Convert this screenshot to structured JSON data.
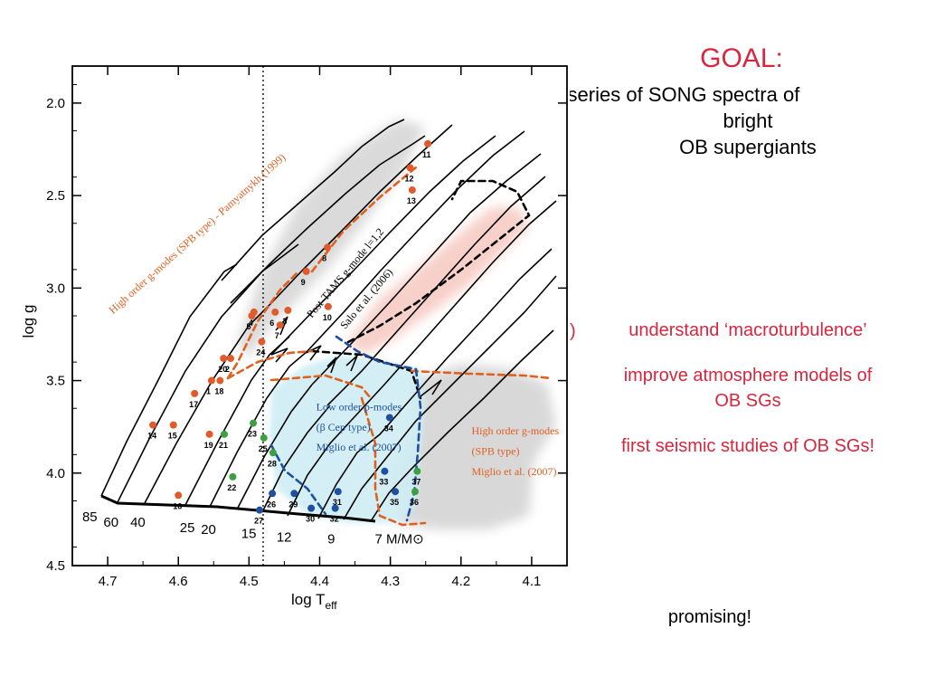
{
  "slide": {
    "goal_title": "GOAL:",
    "goal_lines": [
      "me-series of SONG spectra of",
      "bright",
      "OB supergiants"
    ],
    "bullet_marker": ")",
    "bullets": [
      "understand ‘macroturbulence’",
      "improve atmosphere models of",
      "OB SGs",
      "first seismic studies of OB SGs!"
    ],
    "footer": "promising!",
    "colors": {
      "accent": "#d7263d",
      "text": "#000000"
    }
  },
  "chart_data": {
    "type": "scatter",
    "xlabel": "log T",
    "xlabel_sub": "eff",
    "ylabel": "log g",
    "xlim": [
      4.75,
      4.05
    ],
    "ylim": [
      4.5,
      1.8
    ],
    "xticks": [
      "4.7",
      "4.6",
      "4.5",
      "4.4",
      "4.3",
      "4.2",
      "4.1"
    ],
    "xtick_values": [
      4.7,
      4.6,
      4.5,
      4.4,
      4.3,
      4.2,
      4.1
    ],
    "yticks": [
      "2.0",
      "2.5",
      "3.0",
      "3.5",
      "4.0",
      "4.5"
    ],
    "ytick_values": [
      2.0,
      2.5,
      3.0,
      3.5,
      4.0,
      4.5
    ],
    "vertical_line_x": 4.48,
    "mass_labels": [
      {
        "text": "85",
        "x": 4.736,
        "y": 4.26
      },
      {
        "text": "60",
        "x": 4.706,
        "y": 4.29
      },
      {
        "text": "40",
        "x": 4.668,
        "y": 4.29
      },
      {
        "text": "25",
        "x": 4.598,
        "y": 4.32
      },
      {
        "text": "20",
        "x": 4.568,
        "y": 4.33
      },
      {
        "text": "15",
        "x": 4.511,
        "y": 4.35
      },
      {
        "text": "12",
        "x": 4.461,
        "y": 4.37
      },
      {
        "text": "9",
        "x": 4.389,
        "y": 4.38
      },
      {
        "text": "7 M/M⊙",
        "x": 4.322,
        "y": 4.38
      }
    ],
    "region_labels": [
      {
        "text": "Low order p-modes",
        "color": "#1f4fa0",
        "x": 4.405,
        "y": 3.66
      },
      {
        "text": "(β Cep type)",
        "color": "#1f4fa0",
        "x": 4.405,
        "y": 3.77
      },
      {
        "text": "Miglio et al. (2007)",
        "color": "#1f4fa0",
        "x": 4.405,
        "y": 3.88
      },
      {
        "text": "High order g-modes",
        "color": "#e06020",
        "x": 4.185,
        "y": 3.79
      },
      {
        "text": "(SPB type)",
        "color": "#e06020",
        "x": 4.185,
        "y": 3.9
      },
      {
        "text": "Miglio et al. (2007)",
        "color": "#e06020",
        "x": 4.185,
        "y": 4.01
      }
    ],
    "rotated_labels": [
      {
        "text": "High order g-modes (SPB type) - Pamyatnykh (1999)",
        "color": "#e06020",
        "x": 4.57,
        "y": 2.72,
        "angle": -42
      },
      {
        "text": "Post-TAMS g-mode l=1,2",
        "color": "#000000",
        "x": 4.36,
        "y": 2.93,
        "angle": -50
      },
      {
        "text": "Salo et al. (2006)",
        "color": "#000000",
        "x": 4.33,
        "y": 3.07,
        "angle": -50
      }
    ],
    "series": [
      {
        "name": "",
        "color": "#e05a2b",
        "points": [
          {
            "id": "1",
            "x": 4.553,
            "y": 3.5
          },
          {
            "id": "2",
            "x": 4.526,
            "y": 3.38
          },
          {
            "id": "3",
            "x": 4.445,
            "y": 3.12
          },
          {
            "id": "4",
            "x": 4.493,
            "y": 3.13
          },
          {
            "id": "5",
            "x": 4.496,
            "y": 3.15
          },
          {
            "id": "6",
            "x": 4.463,
            "y": 3.13
          },
          {
            "id": "7",
            "x": 4.456,
            "y": 3.2
          },
          {
            "id": "8",
            "x": 4.389,
            "y": 2.78
          },
          {
            "id": "9",
            "x": 4.419,
            "y": 2.91
          },
          {
            "id": "10",
            "x": 4.388,
            "y": 3.1
          },
          {
            "id": "11",
            "x": 4.247,
            "y": 2.22
          },
          {
            "id": "12",
            "x": 4.272,
            "y": 2.35
          },
          {
            "id": "13",
            "x": 4.269,
            "y": 2.47
          },
          {
            "id": "14",
            "x": 4.636,
            "y": 3.74
          },
          {
            "id": "15",
            "x": 4.607,
            "y": 3.74
          },
          {
            "id": "16",
            "x": 4.6,
            "y": 4.12
          },
          {
            "id": "17",
            "x": 4.577,
            "y": 3.57
          },
          {
            "id": "18",
            "x": 4.541,
            "y": 3.5
          },
          {
            "id": "19",
            "x": 4.556,
            "y": 3.79
          },
          {
            "id": "20",
            "x": 4.536,
            "y": 3.38
          },
          {
            "id": "24",
            "x": 4.482,
            "y": 3.29
          }
        ]
      },
      {
        "name": "",
        "color": "#3aa040",
        "points": [
          {
            "id": "21",
            "x": 4.535,
            "y": 3.79
          },
          {
            "id": "22",
            "x": 4.523,
            "y": 4.02
          },
          {
            "id": "23",
            "x": 4.494,
            "y": 3.73
          },
          {
            "id": "25",
            "x": 4.479,
            "y": 3.81
          },
          {
            "id": "28",
            "x": 4.466,
            "y": 3.89
          },
          {
            "id": "36",
            "x": 4.265,
            "y": 4.1
          },
          {
            "id": "37",
            "x": 4.262,
            "y": 3.99
          }
        ]
      },
      {
        "name": "",
        "color": "#1f4fa0",
        "points": [
          {
            "id": "26",
            "x": 4.467,
            "y": 4.11
          },
          {
            "id": "27",
            "x": 4.485,
            "y": 4.2
          },
          {
            "id": "29",
            "x": 4.436,
            "y": 4.11
          },
          {
            "id": "30",
            "x": 4.412,
            "y": 4.19
          },
          {
            "id": "31",
            "x": 4.374,
            "y": 4.1
          },
          {
            "id": "32",
            "x": 4.378,
            "y": 4.19
          },
          {
            "id": "33",
            "x": 4.308,
            "y": 3.99
          },
          {
            "id": "34",
            "x": 4.301,
            "y": 3.7
          },
          {
            "id": "35",
            "x": 4.293,
            "y": 4.1
          }
        ]
      }
    ]
  }
}
